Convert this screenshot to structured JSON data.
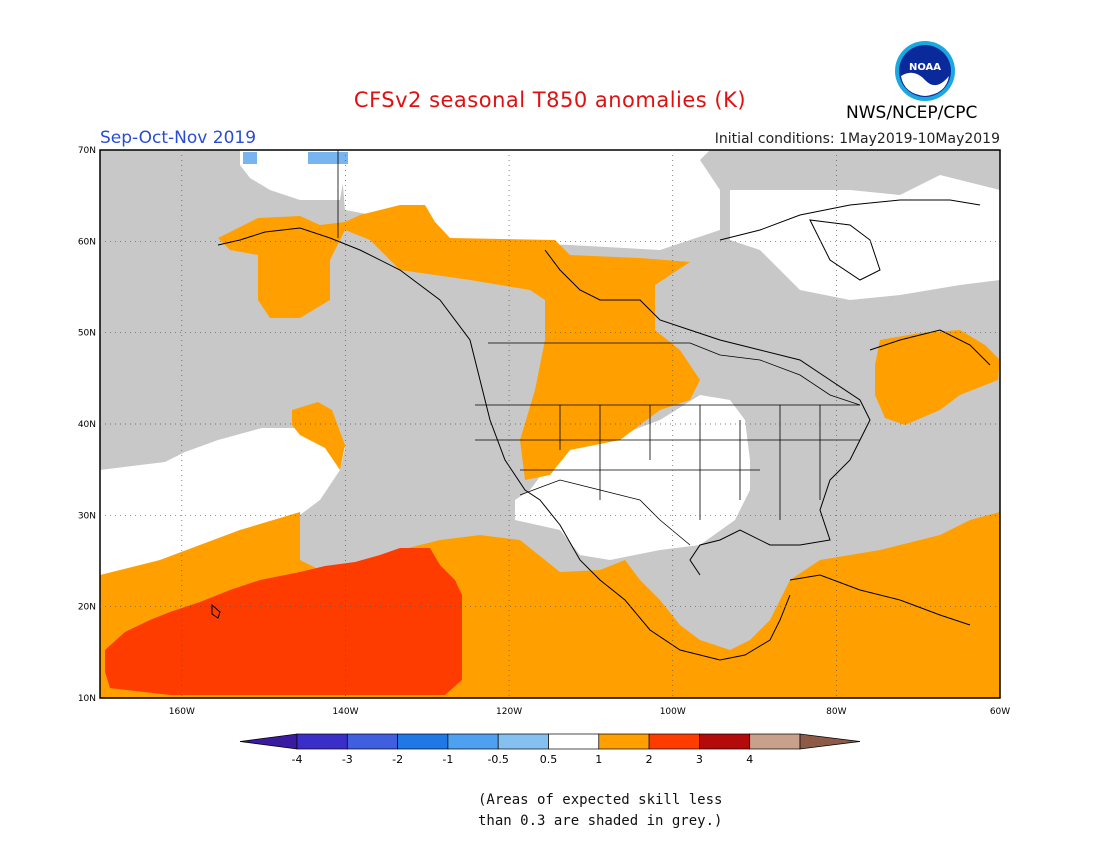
{
  "title": "CFSv2 seasonal T850 anomalies (K)",
  "season": "Sep-Oct-Nov 2019",
  "initial_conditions": "Initial conditions: 1May2019-10May2019",
  "agency": "NWS/NCEP/CPC",
  "logo_text": "NOAA",
  "footnote_line1": "(Areas of expected skill less",
  "footnote_line2": "than 0.3 are shaded in grey.)",
  "colors": {
    "skill_grey": "#c8c8c8",
    "neutral": "#ffffff",
    "pos_0_5_1": "#ffa000",
    "pos_1_2": "#ff3c00",
    "neg_0_5_1": "#78b4f0",
    "title_red": "#e01010",
    "season_blue": "#2a4bd7"
  },
  "map": {
    "lat_labels": [
      "70N",
      "60N",
      "50N",
      "40N",
      "30N",
      "20N",
      "10N"
    ],
    "lon_labels": [
      "160W",
      "140W",
      "120W",
      "100W",
      "80W",
      "60W"
    ]
  },
  "colorbar": {
    "ticks": [
      "-4",
      "-3",
      "-2",
      "-1",
      "-0.5",
      "0.5",
      "1",
      "2",
      "3",
      "4"
    ],
    "colors": [
      "#3a2ec8",
      "#3f5ee0",
      "#1f78e6",
      "#4ea0f0",
      "#84c0f0",
      "#ffffff",
      "#ffa000",
      "#ff3c00",
      "#b40a0a",
      "#c8a08c"
    ],
    "end_low": "#3a1aa0",
    "end_high": "#8c5a46"
  }
}
